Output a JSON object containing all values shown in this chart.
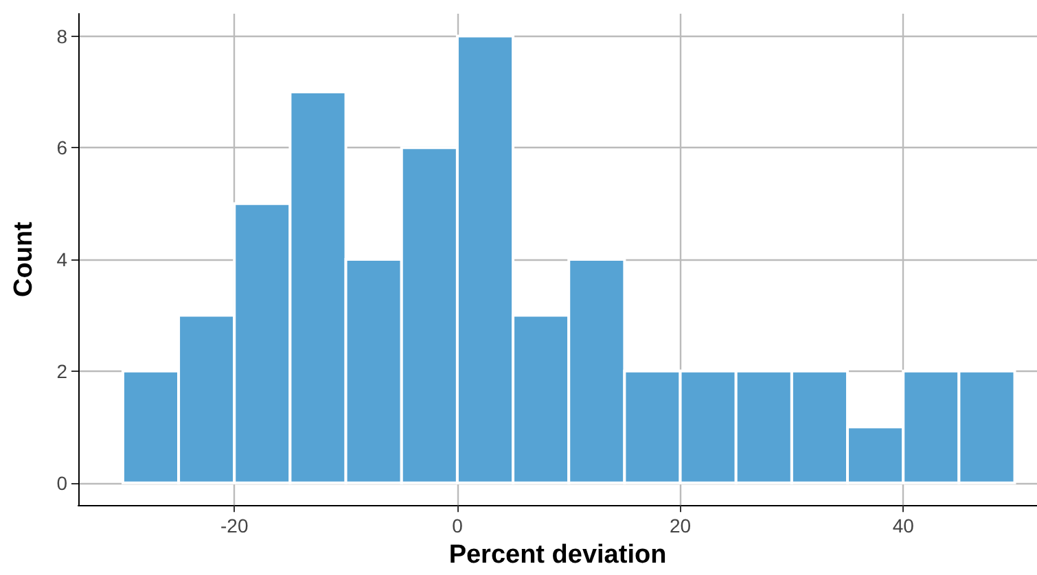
{
  "chart_data": {
    "type": "histogram",
    "xlabel": "Percent deviation",
    "ylabel": "Count",
    "bins": [
      -30,
      -25,
      -20,
      -15,
      -10,
      -5,
      0,
      5,
      10,
      15,
      20,
      25,
      30,
      35,
      40,
      45,
      50
    ],
    "values": [
      2,
      3,
      5,
      7,
      4,
      6,
      8,
      3,
      4,
      2,
      2,
      2,
      2,
      1,
      2,
      2
    ],
    "color": "#56a3d4",
    "xlim": [
      -34,
      52
    ],
    "xticks": [
      -20,
      0,
      20,
      40
    ],
    "ylim": [
      -0.4,
      8.4
    ],
    "yticks": [
      0,
      2,
      4,
      6,
      8
    ],
    "grid": true
  }
}
